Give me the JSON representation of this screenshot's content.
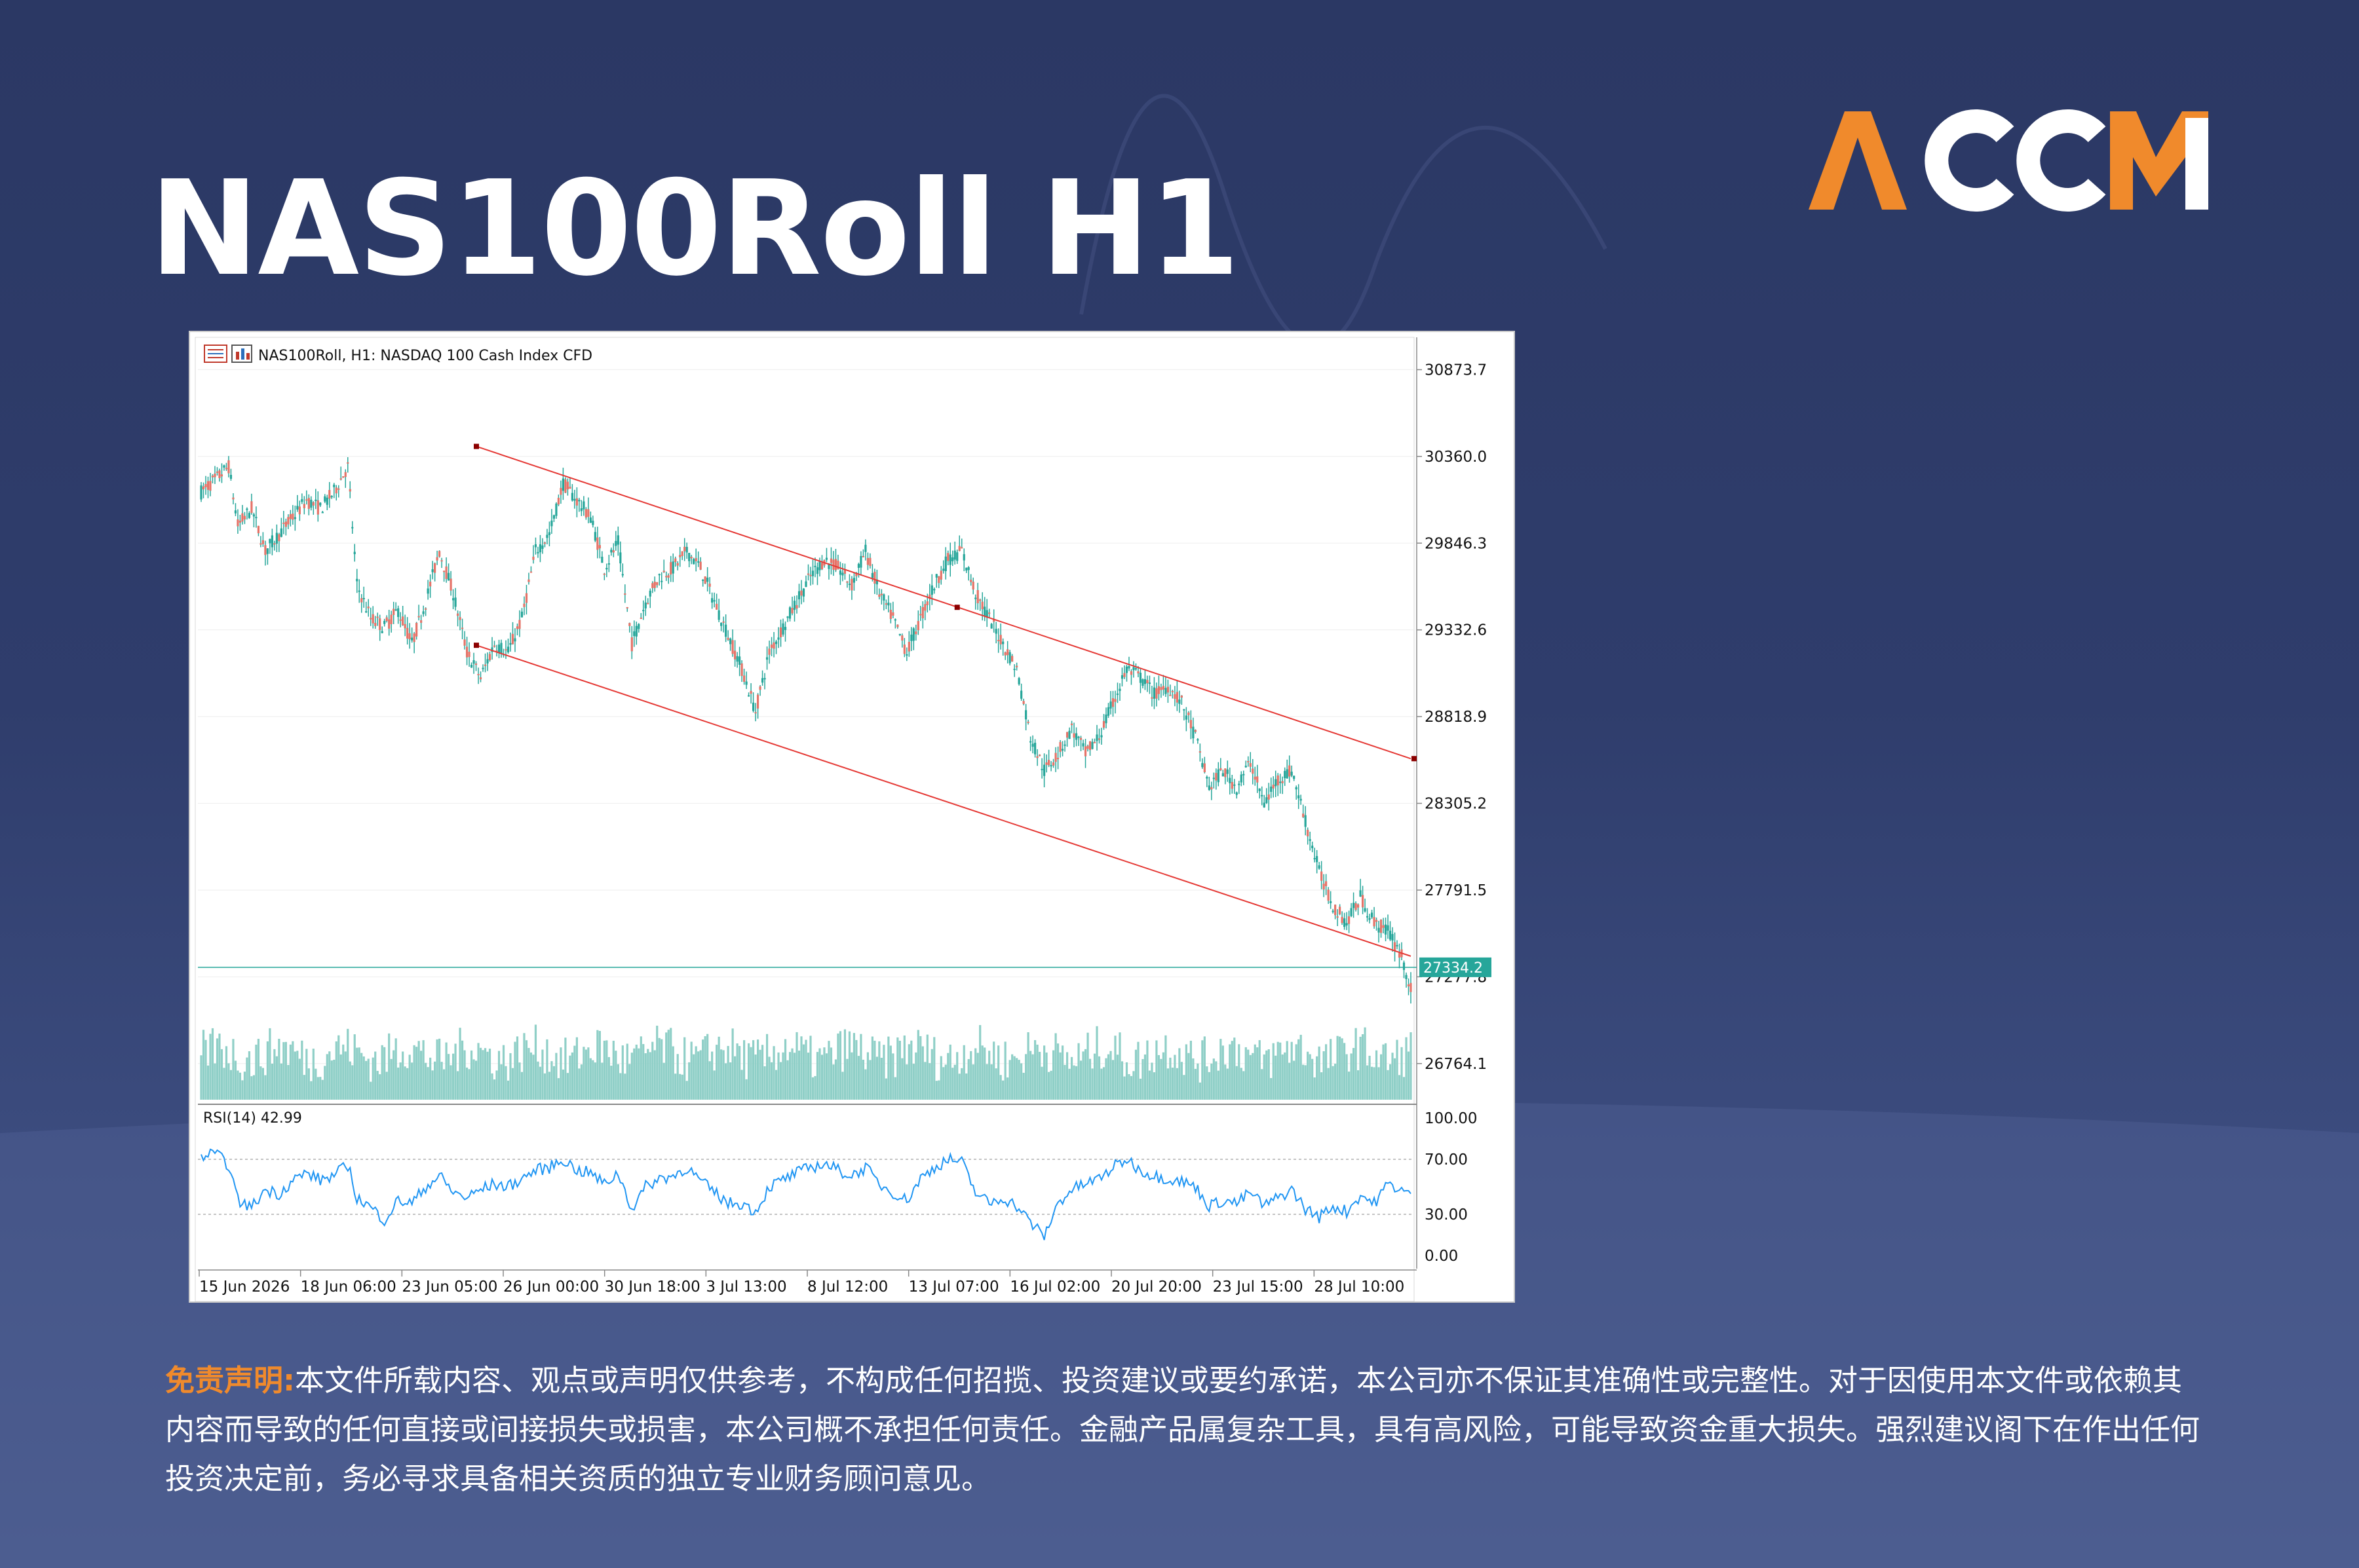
{
  "page": {
    "title": "NAS100Roll H1",
    "logo_text": "ACCM",
    "disclaimer_label": "免责声明:",
    "disclaimer_text": "本文件所载内容、观点或声明仅供参考，不构成任何招揽、投资建议或要约承诺，本公司亦不保证其准确性或完整性。对于因使用本文件或依赖其内容而导致的任何直接或间接损失或损害，本公司概不承担任何责任。金融产品属复杂工具，具有高风险，可能导致资金重大损失。强烈建议阁下在作出任何投资决定前，务必寻求具备相关资质的独立专业财务顾问意见。"
  },
  "colors": {
    "background_top": "#2b3864",
    "accent_orange": "#f08a2c",
    "candle": "#26a69a",
    "channel_line": "#e53935",
    "price_line": "#26a69a",
    "rsi_line": "#2196f3"
  },
  "icons": [
    "chart-list-icon",
    "chart-props-icon"
  ],
  "chart_data": [
    {
      "type": "candlestick",
      "header": "NAS100Roll, H1:  NASDAQ 100 Cash Index CFD",
      "y_ticks": [
        30873.7,
        30360.0,
        29846.3,
        29332.6,
        28818.9,
        28305.2,
        27791.5,
        27277.8,
        26764.1
      ],
      "ylim": [
        26550,
        30980
      ],
      "x_ticks": [
        "15 Jun 2026",
        "18 Jun 06:00",
        "23 Jun 05:00",
        "26 Jun 00:00",
        "30 Jun 18:00",
        "3 Jul 13:00",
        "8 Jul 12:00",
        "13 Jul 07:00",
        "16 Jul 02:00",
        "20 Jul 20:00",
        "23 Jul 15:00",
        "28 Jul 10:00"
      ],
      "current_price": 27334.2,
      "price_path": [
        [
          0,
          30150
        ],
        [
          3,
          30220
        ],
        [
          6,
          30300
        ],
        [
          8,
          29950
        ],
        [
          11,
          30050
        ],
        [
          14,
          29800
        ],
        [
          17,
          29900
        ],
        [
          20,
          30000
        ],
        [
          23,
          30100
        ],
        [
          26,
          30050
        ],
        [
          29,
          30150
        ],
        [
          32,
          30300
        ],
        [
          34,
          29600
        ],
        [
          37,
          29400
        ],
        [
          40,
          29350
        ],
        [
          43,
          29450
        ],
        [
          46,
          29250
        ],
        [
          49,
          29500
        ],
        [
          52,
          29800
        ],
        [
          55,
          29550
        ],
        [
          58,
          29200
        ],
        [
          61,
          29050
        ],
        [
          64,
          29250
        ],
        [
          67,
          29200
        ],
        [
          70,
          29400
        ],
        [
          73,
          29800
        ],
        [
          76,
          29900
        ],
        [
          79,
          30200
        ],
        [
          82,
          30100
        ],
        [
          85,
          30000
        ],
        [
          88,
          29700
        ],
        [
          91,
          29850
        ],
        [
          94,
          29250
        ],
        [
          97,
          29500
        ],
        [
          100,
          29650
        ],
        [
          103,
          29700
        ],
        [
          106,
          29800
        ],
        [
          109,
          29700
        ],
        [
          112,
          29500
        ],
        [
          115,
          29300
        ],
        [
          118,
          29100
        ],
        [
          121,
          28850
        ],
        [
          124,
          29200
        ],
        [
          127,
          29350
        ],
        [
          130,
          29500
        ],
        [
          133,
          29650
        ],
        [
          136,
          29750
        ],
        [
          139,
          29700
        ],
        [
          142,
          29600
        ],
        [
          145,
          29800
        ],
        [
          148,
          29550
        ],
        [
          151,
          29400
        ],
        [
          154,
          29200
        ],
        [
          157,
          29400
        ],
        [
          160,
          29600
        ],
        [
          163,
          29750
        ],
        [
          166,
          29800
        ],
        [
          169,
          29550
        ],
        [
          172,
          29400
        ],
        [
          175,
          29250
        ],
        [
          178,
          29100
        ],
        [
          181,
          28700
        ],
        [
          184,
          28500
        ],
        [
          187,
          28600
        ],
        [
          190,
          28750
        ],
        [
          193,
          28600
        ],
        [
          196,
          28700
        ],
        [
          199,
          28900
        ],
        [
          202,
          29100
        ],
        [
          205,
          29050
        ],
        [
          208,
          28950
        ],
        [
          211,
          29000
        ],
        [
          214,
          28900
        ],
        [
          217,
          28700
        ],
        [
          220,
          28400
        ],
        [
          223,
          28500
        ],
        [
          226,
          28400
        ],
        [
          229,
          28550
        ],
        [
          232,
          28300
        ],
        [
          235,
          28450
        ],
        [
          238,
          28500
        ],
        [
          241,
          28200
        ],
        [
          244,
          27900
        ],
        [
          247,
          27700
        ],
        [
          250,
          27600
        ],
        [
          253,
          27750
        ],
        [
          256,
          27600
        ],
        [
          259,
          27550
        ],
        [
          262,
          27400
        ],
        [
          264,
          27200
        ]
      ],
      "channel_upper": [
        [
          0,
          30960
        ],
        [
          264,
          28570
        ]
      ],
      "channel_lower": [
        [
          0,
          29780
        ],
        [
          264,
          27400
        ]
      ]
    },
    {
      "type": "line",
      "header": "RSI(14) 42.99",
      "y_ticks": [
        100.0,
        70.0,
        30.0,
        0.0
      ],
      "ylim": [
        0,
        100
      ],
      "guide_levels": [
        70,
        30
      ],
      "values": [
        [
          0,
          72
        ],
        [
          3,
          74
        ],
        [
          6,
          66
        ],
        [
          8,
          40
        ],
        [
          11,
          35
        ],
        [
          14,
          48
        ],
        [
          17,
          45
        ],
        [
          20,
          55
        ],
        [
          23,
          60
        ],
        [
          26,
          55
        ],
        [
          29,
          58
        ],
        [
          32,
          66
        ],
        [
          34,
          42
        ],
        [
          37,
          35
        ],
        [
          40,
          26
        ],
        [
          43,
          40
        ],
        [
          46,
          38
        ],
        [
          49,
          50
        ],
        [
          52,
          58
        ],
        [
          55,
          46
        ],
        [
          58,
          42
        ],
        [
          61,
          48
        ],
        [
          64,
          52
        ],
        [
          67,
          50
        ],
        [
          70,
          56
        ],
        [
          73,
          62
        ],
        [
          76,
          64
        ],
        [
          79,
          70
        ],
        [
          82,
          62
        ],
        [
          85,
          60
        ],
        [
          88,
          52
        ],
        [
          91,
          60
        ],
        [
          94,
          34
        ],
        [
          97,
          50
        ],
        [
          100,
          56
        ],
        [
          103,
          58
        ],
        [
          106,
          64
        ],
        [
          109,
          54
        ],
        [
          112,
          46
        ],
        [
          115,
          38
        ],
        [
          118,
          38
        ],
        [
          121,
          32
        ],
        [
          124,
          50
        ],
        [
          127,
          55
        ],
        [
          130,
          60
        ],
        [
          133,
          64
        ],
        [
          136,
          67
        ],
        [
          139,
          62
        ],
        [
          142,
          58
        ],
        [
          145,
          64
        ],
        [
          148,
          52
        ],
        [
          151,
          46
        ],
        [
          154,
          40
        ],
        [
          157,
          56
        ],
        [
          160,
          64
        ],
        [
          163,
          70
        ],
        [
          166,
          68
        ],
        [
          169,
          46
        ],
        [
          172,
          38
        ],
        [
          175,
          42
        ],
        [
          178,
          36
        ],
        [
          181,
          24
        ],
        [
          184,
          14
        ],
        [
          187,
          38
        ],
        [
          190,
          48
        ],
        [
          193,
          52
        ],
        [
          196,
          56
        ],
        [
          199,
          64
        ],
        [
          202,
          70
        ],
        [
          205,
          62
        ],
        [
          208,
          58
        ],
        [
          211,
          56
        ],
        [
          214,
          54
        ],
        [
          217,
          50
        ],
        [
          220,
          36
        ],
        [
          223,
          40
        ],
        [
          226,
          38
        ],
        [
          229,
          46
        ],
        [
          232,
          36
        ],
        [
          235,
          42
        ],
        [
          238,
          48
        ],
        [
          241,
          34
        ],
        [
          244,
          28
        ],
        [
          247,
          36
        ],
        [
          250,
          32
        ],
        [
          253,
          44
        ],
        [
          256,
          38
        ],
        [
          259,
          52
        ],
        [
          262,
          48
        ],
        [
          264,
          43
        ]
      ]
    }
  ]
}
